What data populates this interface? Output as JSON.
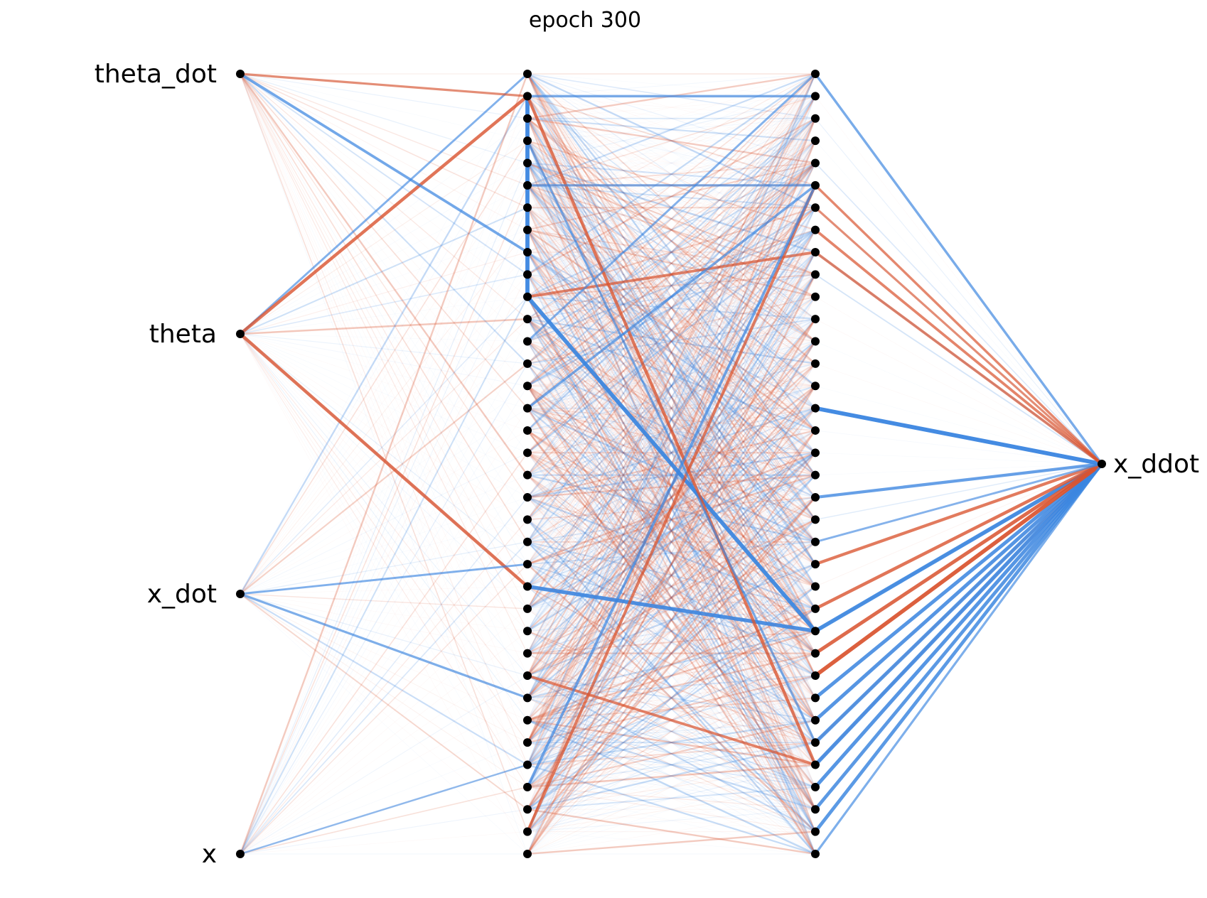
{
  "figure": {
    "title": "epoch 300"
  },
  "network": {
    "input_labels": [
      "theta_dot",
      "theta",
      "x_dot",
      "x"
    ],
    "output_labels": [
      "x_ddot"
    ],
    "layer_sizes": [
      4,
      36,
      36,
      1
    ],
    "colors": {
      "positive": "#3a85e0",
      "negative": "#d9532e",
      "node": "#000000"
    },
    "highlight_edges": [
      {
        "from": [
          0,
          1
        ],
        "to": [
          1,
          0
        ],
        "w": 0.45
      },
      {
        "from": [
          1,
          1
        ],
        "to": [
          1,
          10
        ],
        "w": 1.0
      },
      {
        "from": [
          0,
          1
        ],
        "to": [
          1,
          1
        ],
        "w": -0.75
      },
      {
        "from": [
          0,
          1
        ],
        "to": [
          1,
          23
        ],
        "w": -0.75
      },
      {
        "from": [
          0,
          0
        ],
        "to": [
          1,
          8
        ],
        "w": 0.6
      },
      {
        "from": [
          0,
          0
        ],
        "to": [
          1,
          1
        ],
        "w": -0.5
      },
      {
        "from": [
          0,
          2
        ],
        "to": [
          1,
          28
        ],
        "w": 0.5
      },
      {
        "from": [
          0,
          2
        ],
        "to": [
          1,
          22
        ],
        "w": 0.45
      },
      {
        "from": [
          0,
          3
        ],
        "to": [
          1,
          31
        ],
        "w": 0.35
      },
      {
        "from": [
          1,
          10
        ],
        "to": [
          2,
          25
        ],
        "w": 0.95
      },
      {
        "from": [
          1,
          23
        ],
        "to": [
          2,
          25
        ],
        "w": 0.9
      },
      {
        "from": [
          1,
          1
        ],
        "to": [
          2,
          31
        ],
        "w": -0.7
      },
      {
        "from": [
          1,
          10
        ],
        "to": [
          2,
          8
        ],
        "w": -0.6
      },
      {
        "from": [
          1,
          27
        ],
        "to": [
          2,
          31
        ],
        "w": -0.6
      },
      {
        "from": [
          1,
          34
        ],
        "to": [
          2,
          5
        ],
        "w": -0.65
      },
      {
        "from": [
          1,
          32
        ],
        "to": [
          2,
          5
        ],
        "w": 0.6
      },
      {
        "from": [
          1,
          15
        ],
        "to": [
          2,
          5
        ],
        "w": 0.55
      },
      {
        "from": [
          1,
          1
        ],
        "to": [
          2,
          1
        ],
        "w": 0.55
      },
      {
        "from": [
          1,
          5
        ],
        "to": [
          2,
          5
        ],
        "w": 0.5
      },
      {
        "from": [
          1,
          3
        ],
        "to": [
          2,
          30
        ],
        "w": 0.5
      },
      {
        "from": [
          1,
          12
        ],
        "to": [
          2,
          0
        ],
        "w": 0.45
      },
      {
        "from": [
          2,
          15
        ],
        "to": [
          3,
          0
        ],
        "w": 1.0
      },
      {
        "from": [
          2,
          25
        ],
        "to": [
          3,
          0
        ],
        "w": 0.95
      },
      {
        "from": [
          2,
          28
        ],
        "to": [
          3,
          0
        ],
        "w": 0.85
      },
      {
        "from": [
          2,
          29
        ],
        "to": [
          3,
          0
        ],
        "w": 0.85
      },
      {
        "from": [
          2,
          30
        ],
        "to": [
          3,
          0
        ],
        "w": 0.85
      },
      {
        "from": [
          2,
          31
        ],
        "to": [
          3,
          0
        ],
        "w": 0.9
      },
      {
        "from": [
          2,
          32
        ],
        "to": [
          3,
          0
        ],
        "w": 0.85
      },
      {
        "from": [
          2,
          33
        ],
        "to": [
          3,
          0
        ],
        "w": 0.8
      },
      {
        "from": [
          2,
          34
        ],
        "to": [
          3,
          0
        ],
        "w": 0.8
      },
      {
        "from": [
          2,
          27
        ],
        "to": [
          3,
          0
        ],
        "w": -0.95
      },
      {
        "from": [
          2,
          26
        ],
        "to": [
          3,
          0
        ],
        "w": -0.85
      },
      {
        "from": [
          2,
          24
        ],
        "to": [
          3,
          0
        ],
        "w": -0.75
      },
      {
        "from": [
          2,
          22
        ],
        "to": [
          3,
          0
        ],
        "w": -0.7
      },
      {
        "from": [
          2,
          19
        ],
        "to": [
          3,
          0
        ],
        "w": 0.7
      },
      {
        "from": [
          2,
          0
        ],
        "to": [
          3,
          0
        ],
        "w": 0.55
      },
      {
        "from": [
          2,
          5
        ],
        "to": [
          3,
          0
        ],
        "w": -0.55
      },
      {
        "from": [
          2,
          7
        ],
        "to": [
          3,
          0
        ],
        "w": -0.6
      },
      {
        "from": [
          2,
          8
        ],
        "to": [
          3,
          0
        ],
        "w": -0.6
      },
      {
        "from": [
          2,
          6
        ],
        "to": [
          3,
          0
        ],
        "w": -0.5
      },
      {
        "from": [
          2,
          35
        ],
        "to": [
          3,
          0
        ],
        "w": 0.5
      },
      {
        "from": [
          2,
          21
        ],
        "to": [
          3,
          0
        ],
        "w": 0.45
      }
    ]
  }
}
